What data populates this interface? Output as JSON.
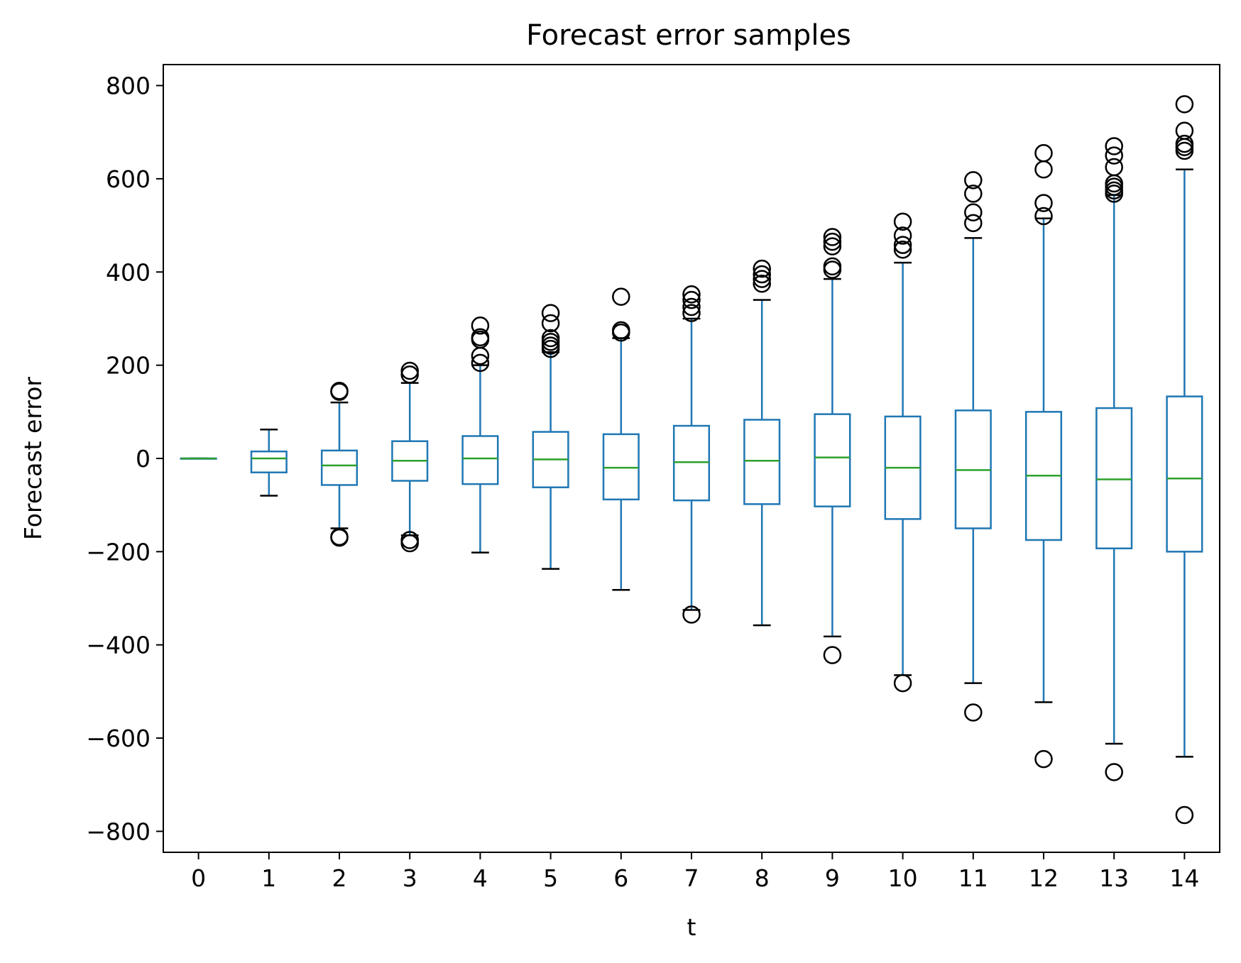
{
  "chart_data": {
    "type": "box",
    "title": "Forecast error samples",
    "xlabel": "t",
    "ylabel": "Forecast error",
    "ylim": [
      -845,
      845
    ],
    "y_ticks": [
      -800,
      -600,
      -400,
      -200,
      0,
      200,
      400,
      600,
      800
    ],
    "y_tick_labels": [
      "−800",
      "−600",
      "−400",
      "−200",
      "0",
      "200",
      "400",
      "600",
      "800"
    ],
    "grid": false,
    "colors": {
      "box": "#1f77b4",
      "median": "#2ca02c",
      "cap": "#000000",
      "flier": "#000000"
    },
    "categories": [
      "0",
      "1",
      "2",
      "3",
      "4",
      "5",
      "6",
      "7",
      "8",
      "9",
      "10",
      "11",
      "12",
      "13",
      "14"
    ],
    "boxes": [
      {
        "t": "0",
        "whislo": 0,
        "q1": 0,
        "med": 0,
        "q3": 0,
        "whishi": 0,
        "fliers": []
      },
      {
        "t": "1",
        "whislo": -80,
        "q1": -30,
        "med": 0,
        "q3": 15,
        "whishi": 62,
        "fliers": []
      },
      {
        "t": "2",
        "whislo": -150,
        "q1": -57,
        "med": -15,
        "q3": 17,
        "whishi": 120,
        "fliers": [
          143,
          145,
          -168,
          -170
        ]
      },
      {
        "t": "3",
        "whislo": -165,
        "q1": -48,
        "med": -5,
        "q3": 37,
        "whishi": 162,
        "fliers": [
          180,
          188,
          -175,
          -182
        ]
      },
      {
        "t": "4",
        "whislo": -202,
        "q1": -55,
        "med": 0,
        "q3": 48,
        "whishi": 200,
        "fliers": [
          205,
          220,
          255,
          260,
          285
        ]
      },
      {
        "t": "5",
        "whislo": -237,
        "q1": -62,
        "med": -2,
        "q3": 57,
        "whishi": 228,
        "fliers": [
          235,
          242,
          250,
          258,
          290,
          312
        ]
      },
      {
        "t": "6",
        "whislo": -282,
        "q1": -88,
        "med": -20,
        "q3": 52,
        "whishi": 258,
        "fliers": [
          270,
          275,
          347
        ]
      },
      {
        "t": "7",
        "whislo": -325,
        "q1": -90,
        "med": -8,
        "q3": 70,
        "whishi": 300,
        "fliers": [
          312,
          325,
          340,
          352,
          -335
        ]
      },
      {
        "t": "8",
        "whislo": -358,
        "q1": -98,
        "med": -5,
        "q3": 83,
        "whishi": 340,
        "fliers": [
          375,
          385,
          395,
          407
        ]
      },
      {
        "t": "9",
        "whislo": -382,
        "q1": -103,
        "med": 2,
        "q3": 95,
        "whishi": 385,
        "fliers": [
          405,
          412,
          455,
          465,
          475,
          -422
        ]
      },
      {
        "t": "10",
        "whislo": -465,
        "q1": -130,
        "med": -20,
        "q3": 90,
        "whishi": 420,
        "fliers": [
          448,
          458,
          478,
          508,
          -482
        ]
      },
      {
        "t": "11",
        "whislo": -482,
        "q1": -150,
        "med": -25,
        "q3": 103,
        "whishi": 473,
        "fliers": [
          505,
          528,
          568,
          597,
          -545
        ]
      },
      {
        "t": "12",
        "whislo": -523,
        "q1": -175,
        "med": -37,
        "q3": 100,
        "whishi": 515,
        "fliers": [
          520,
          548,
          620,
          655,
          -645
        ]
      },
      {
        "t": "13",
        "whislo": -612,
        "q1": -193,
        "med": -45,
        "q3": 108,
        "whishi": 565,
        "fliers": [
          568,
          575,
          583,
          590,
          625,
          650,
          670,
          -673
        ]
      },
      {
        "t": "14",
        "whislo": -640,
        "q1": -200,
        "med": -43,
        "q3": 133,
        "whishi": 620,
        "fliers": [
          660,
          668,
          675,
          703,
          760,
          -765
        ]
      }
    ]
  }
}
